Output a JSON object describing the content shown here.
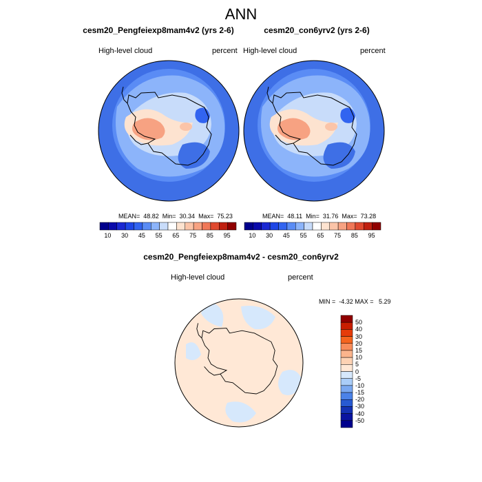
{
  "title": "ANN",
  "panels": [
    {
      "title": "cesm20_Pengfeiexp8mam4v2 (yrs 2-6)",
      "left_label": "High-level cloud",
      "right_label": "percent",
      "stats": "MEAN=  48.82  Min=  30.34  Max=  75.23"
    },
    {
      "title": "cesm20_con6yrv2 (yrs 2-6)",
      "left_label": "High-level cloud",
      "right_label": "percent",
      "stats": "MEAN=  48.11  Min=  31.76  Max=  73.28"
    }
  ],
  "colorbar": {
    "tick_labels": [
      "10",
      "30",
      "45",
      "55",
      "65",
      "75",
      "85",
      "95"
    ],
    "colors": [
      "#00008c",
      "#0a0aaa",
      "#1a28d2",
      "#1e46e6",
      "#3264f0",
      "#5a8cf5",
      "#8cb4fa",
      "#c8dcfa",
      "#ffffff",
      "#fde3d0",
      "#fbc4a8",
      "#f7a282",
      "#f07858",
      "#e04a30",
      "#c02010",
      "#900000"
    ]
  },
  "diff_panel": {
    "title": "cesm20_Pengfeiexp8mam4v2 - cesm20_con6yrv2",
    "left_label": "High-level cloud",
    "right_label": "percent",
    "minmax": "MIN =  -4.32 MAX =   5.29",
    "colorbar": {
      "tick_labels": [
        "50",
        "40",
        "30",
        "20",
        "15",
        "10",
        "5",
        "0",
        "-5",
        "-10",
        "-15",
        "-20",
        "-30",
        "-40",
        "-50"
      ],
      "colors": [
        "#900000",
        "#c81e00",
        "#e63c0a",
        "#f5641e",
        "#f88c5a",
        "#fbb48c",
        "#fdd2b4",
        "#ffe8d6",
        "#d6e8fc",
        "#aacdf8",
        "#7aa8f0",
        "#4b82e8",
        "#285ad2",
        "#1432b4",
        "#0a14a0",
        "#00008c"
      ]
    }
  }
}
